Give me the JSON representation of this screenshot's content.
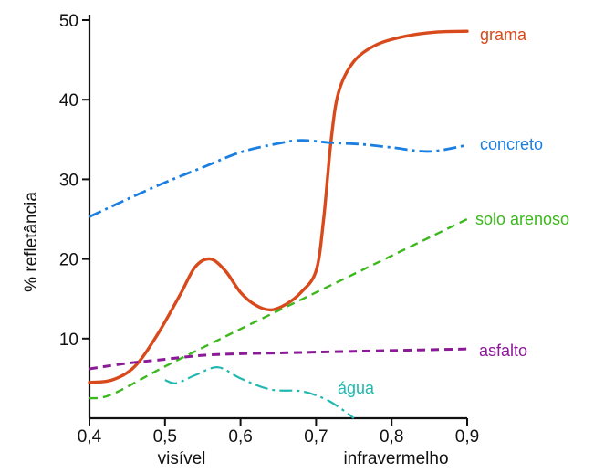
{
  "chart_data": {
    "type": "line",
    "xlabel": "",
    "ylabel": "% refletância",
    "x_region_labels": [
      "visível",
      "infravermelho"
    ],
    "xlim": [
      0.4,
      0.9
    ],
    "ylim": [
      0,
      50
    ],
    "x_ticks": [
      0.4,
      0.5,
      0.6,
      0.7,
      0.8,
      0.9
    ],
    "x_tick_labels": [
      "0,4",
      "0,5",
      "0,6",
      "0,7",
      "0,8",
      "0,9"
    ],
    "y_ticks": [
      10,
      20,
      30,
      40,
      50
    ],
    "y_tick_labels": [
      "10",
      "20",
      "30",
      "40",
      "50"
    ],
    "grid": false,
    "series": [
      {
        "name": "grama",
        "color": "#d84a1b",
        "style": "solid",
        "x": [
          0.4,
          0.43,
          0.46,
          0.49,
          0.52,
          0.54,
          0.56,
          0.58,
          0.6,
          0.62,
          0.64,
          0.66,
          0.68,
          0.7,
          0.71,
          0.72,
          0.73,
          0.75,
          0.78,
          0.82,
          0.86,
          0.9
        ],
        "y": [
          4.5,
          4.8,
          6.5,
          10.5,
          15.5,
          19.0,
          20.0,
          18.5,
          15.8,
          14.2,
          13.6,
          14.3,
          15.8,
          18.5,
          25.0,
          35.0,
          41.0,
          44.8,
          46.9,
          48.0,
          48.5,
          48.6
        ]
      },
      {
        "name": "concreto",
        "color": "#1a7fe0",
        "style": "dashdot",
        "x": [
          0.4,
          0.45,
          0.5,
          0.55,
          0.6,
          0.65,
          0.68,
          0.72,
          0.76,
          0.8,
          0.85,
          0.9
        ],
        "y": [
          25.3,
          27.5,
          29.6,
          31.5,
          33.4,
          34.5,
          34.9,
          34.6,
          34.4,
          34.0,
          33.5,
          34.3
        ]
      },
      {
        "name": "solo arenoso",
        "color": "#3cb81e",
        "style": "dashed",
        "x": [
          0.4,
          0.43,
          0.5,
          0.6,
          0.7,
          0.8,
          0.9
        ],
        "y": [
          2.5,
          3.0,
          6.5,
          11.2,
          15.8,
          20.4,
          25.0
        ]
      },
      {
        "name": "asfalto",
        "color": "#8a1a96",
        "style": "dashed",
        "x": [
          0.4,
          0.45,
          0.5,
          0.55,
          0.6,
          0.65,
          0.7,
          0.75,
          0.8,
          0.85,
          0.9
        ],
        "y": [
          6.2,
          6.9,
          7.4,
          7.9,
          8.1,
          8.2,
          8.3,
          8.4,
          8.5,
          8.6,
          8.7
        ]
      },
      {
        "name": "água",
        "color": "#20b8b0",
        "style": "dashdot",
        "x": [
          0.5,
          0.515,
          0.54,
          0.57,
          0.6,
          0.64,
          0.68,
          0.71,
          0.73,
          0.75
        ],
        "y": [
          4.8,
          4.4,
          5.4,
          6.4,
          5.0,
          3.6,
          3.4,
          2.5,
          1.4,
          0.0
        ]
      }
    ]
  }
}
